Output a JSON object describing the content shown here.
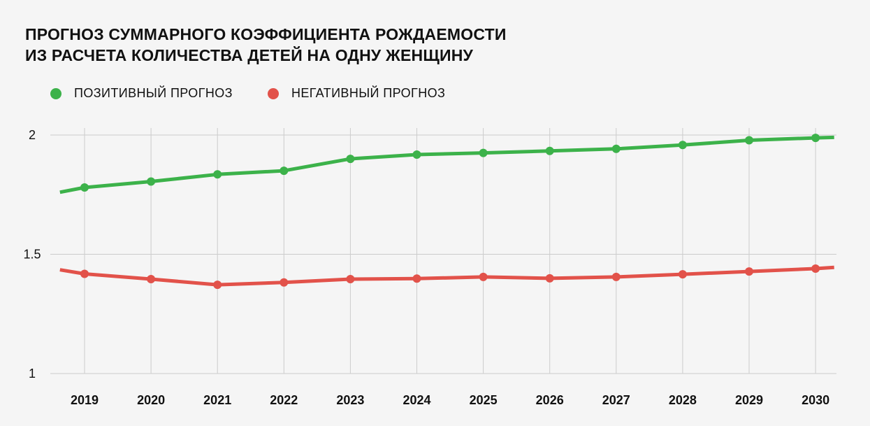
{
  "title": {
    "line1": "ПРОГНОЗ СУММАРНОГО КОЭФФИЦИЕНТА РОЖДАЕМОСТИ",
    "line2": "ИЗ РАСЧЕТА КОЛИЧЕСТВА ДЕТЕЙ НА ОДНУ ЖЕНЩИНУ"
  },
  "colors": {
    "background": "#f5f5f5",
    "positive": "#3cb24a",
    "negative": "#e2524a",
    "grid": "#cccccc",
    "text": "#111111"
  },
  "chart_data": {
    "type": "line",
    "x": [
      "2019",
      "2020",
      "2021",
      "2022",
      "2023",
      "2024",
      "2025",
      "2026",
      "2027",
      "2028",
      "2029",
      "2030"
    ],
    "xlim": [
      2018.63,
      2030.28
    ],
    "ylim": [
      1,
      2
    ],
    "yticks": [
      {
        "value": 1,
        "label": "1"
      },
      {
        "value": 1.5,
        "label": "1.5"
      },
      {
        "value": 2,
        "label": "2"
      }
    ],
    "grid": true,
    "legend_position": "top-left",
    "series": [
      {
        "name": "ПОЗИТИВНЫЙ ПРОГНОЗ",
        "color": "#3cb24a",
        "line_start": [
          2018.63,
          1.76
        ],
        "line_end": [
          2030.28,
          1.99
        ],
        "values": [
          1.78,
          1.805,
          1.835,
          1.85,
          1.9,
          1.918,
          1.925,
          1.933,
          1.942,
          1.958,
          1.978,
          1.988
        ]
      },
      {
        "name": "НЕГАТИВНЫЙ ПРОГНОЗ",
        "color": "#e2524a",
        "line_start": [
          2018.63,
          1.435
        ],
        "line_end": [
          2030.28,
          1.445
        ],
        "values": [
          1.418,
          1.396,
          1.372,
          1.382,
          1.396,
          1.398,
          1.405,
          1.399,
          1.405,
          1.416,
          1.428,
          1.44
        ]
      }
    ]
  }
}
